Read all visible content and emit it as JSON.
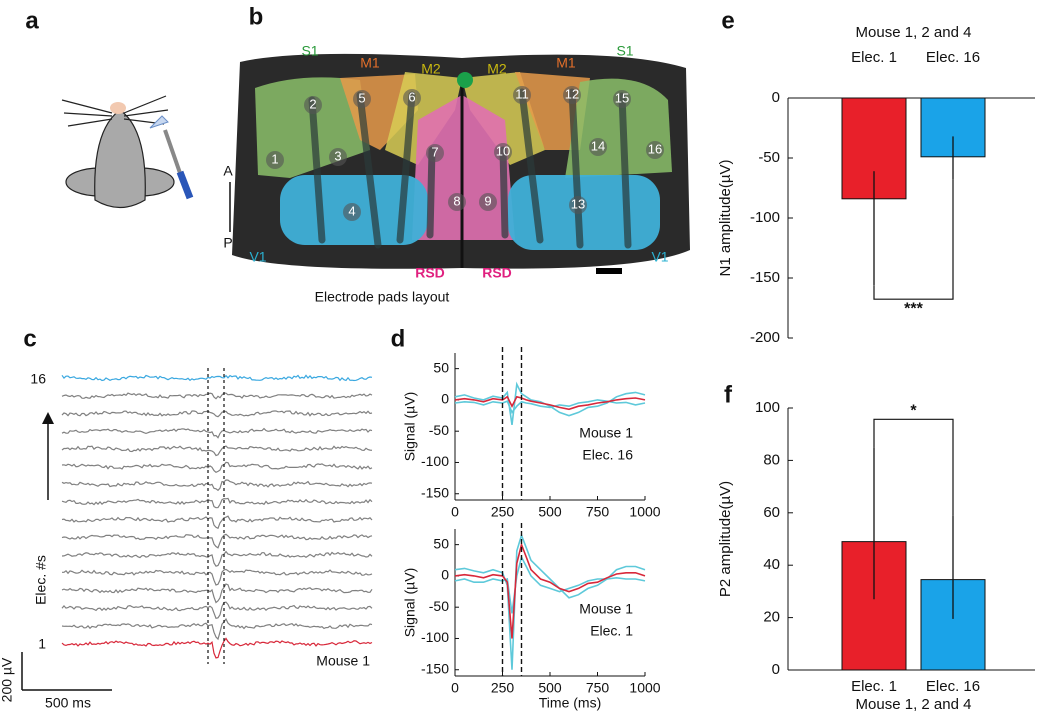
{
  "panel_labels": [
    "a",
    "b",
    "c",
    "d",
    "e",
    "f"
  ],
  "brain_map": {
    "regions": [
      "S1",
      "M1",
      "M2",
      "M2",
      "M1",
      "S1",
      "V1",
      "V1",
      "RSD",
      "RSD"
    ],
    "electrodes": [
      "1",
      "2",
      "3",
      "4",
      "5",
      "6",
      "7",
      "8",
      "9",
      "10",
      "11",
      "12",
      "13",
      "14",
      "15",
      "16"
    ],
    "orientation": [
      "A",
      "P"
    ],
    "caption": "Electrode pads layout"
  },
  "traces": {
    "electrode_top": "16",
    "electrode_bottom": "1",
    "axis_label": "Elec. #s",
    "annotation": "Mouse 1",
    "scale_y": "200 µV",
    "scale_x": "500 ms"
  },
  "chart_data": [
    {
      "type": "line",
      "ylabel": "Signal (µV)",
      "annotation": [
        "Mouse 1",
        "Elec. 16"
      ],
      "x": [
        0,
        50,
        100,
        150,
        200,
        250,
        275,
        300,
        325,
        350,
        375,
        400,
        450,
        500,
        550,
        600,
        650,
        700,
        750,
        800,
        850,
        900,
        950,
        1000
      ],
      "series": [
        {
          "color": "#5ec9da",
          "values": [
            5,
            8,
            3,
            0,
            6,
            3,
            12,
            -40,
            25,
            10,
            5,
            0,
            -3,
            -10,
            -20,
            -25,
            -20,
            -12,
            -10,
            -5,
            5,
            10,
            12,
            8
          ]
        },
        {
          "color": "#5ec9da",
          "values": [
            -5,
            -3,
            -4,
            -8,
            -3,
            -5,
            -2,
            -20,
            -10,
            -3,
            -5,
            -6,
            -10,
            -12,
            -8,
            -10,
            -5,
            -3,
            0,
            -2,
            -5,
            -4,
            -8,
            -5
          ]
        },
        {
          "color": "#d8283a",
          "values": [
            0,
            2,
            0,
            -3,
            2,
            0,
            5,
            -10,
            5,
            3,
            0,
            -2,
            -5,
            -8,
            -12,
            -15,
            -10,
            -8,
            -5,
            -3,
            0,
            2,
            3,
            0
          ]
        }
      ],
      "vlines": [
        250,
        350
      ],
      "xlim": [
        0,
        1000
      ],
      "xticks": [
        0,
        250,
        500,
        750,
        1000
      ],
      "ylim": [
        -160,
        75
      ],
      "yticks": [
        50,
        0,
        -50,
        -100,
        -150
      ]
    },
    {
      "type": "line",
      "ylabel": "Signal (µV)",
      "xlabel": "Time (ms)",
      "annotation": [
        "Mouse 1",
        "Elec. 1"
      ],
      "x": [
        0,
        50,
        100,
        150,
        200,
        250,
        275,
        300,
        325,
        350,
        375,
        400,
        450,
        500,
        550,
        600,
        650,
        700,
        750,
        800,
        850,
        900,
        950,
        1000
      ],
      "series": [
        {
          "color": "#5ec9da",
          "values": [
            10,
            12,
            8,
            5,
            10,
            5,
            -15,
            -150,
            40,
            65,
            45,
            25,
            10,
            -5,
            -20,
            -35,
            -30,
            -20,
            -15,
            -5,
            10,
            15,
            15,
            10
          ]
        },
        {
          "color": "#5ec9da",
          "values": [
            -8,
            -5,
            -10,
            -10,
            -5,
            -8,
            -5,
            -60,
            0,
            30,
            15,
            0,
            -15,
            -20,
            -25,
            -20,
            -15,
            -8,
            -5,
            -5,
            -3,
            -5,
            -5,
            -8
          ]
        },
        {
          "color": "#d8283a",
          "values": [
            0,
            2,
            0,
            -3,
            2,
            0,
            -10,
            -100,
            20,
            50,
            30,
            10,
            -5,
            -10,
            -20,
            -25,
            -20,
            -12,
            -10,
            -3,
            3,
            5,
            5,
            0
          ]
        }
      ],
      "vlines": [
        250,
        350
      ],
      "xlim": [
        0,
        1000
      ],
      "xticks": [
        0,
        250,
        500,
        750,
        1000
      ],
      "ylim": [
        -160,
        75
      ],
      "yticks": [
        50,
        0,
        -50,
        -100,
        -150
      ]
    },
    {
      "type": "bar",
      "subtitle": "Mouse 1, 2 and 4",
      "ylabel": "N1 amplitude(µV)",
      "category_position": "top",
      "categories": [
        "Elec. 1",
        "Elec. 16"
      ],
      "values": [
        -84,
        -49
      ],
      "error_bounds": [
        [
          -156,
          -61
        ],
        [
          -68,
          -32
        ]
      ],
      "colors": [
        "#e8202a",
        "#1aa3e8"
      ],
      "significance": "***",
      "ylim": [
        -200,
        0
      ],
      "yticks": [
        0,
        -50,
        -100,
        -150,
        -200
      ]
    },
    {
      "type": "bar",
      "subtitle": "Mouse 1, 2 and 4",
      "ylabel": "P2 amplitude(µV)",
      "category_position": "bottom",
      "categories": [
        "Elec. 1",
        "Elec. 16"
      ],
      "values": [
        49,
        34.5
      ],
      "error_bounds": [
        [
          27,
          85
        ],
        [
          19.5,
          59
        ]
      ],
      "colors": [
        "#e8202a",
        "#1aa3e8"
      ],
      "significance": "*",
      "ylim": [
        0,
        100
      ],
      "yticks": [
        0,
        20,
        40,
        60,
        80,
        100
      ]
    }
  ]
}
